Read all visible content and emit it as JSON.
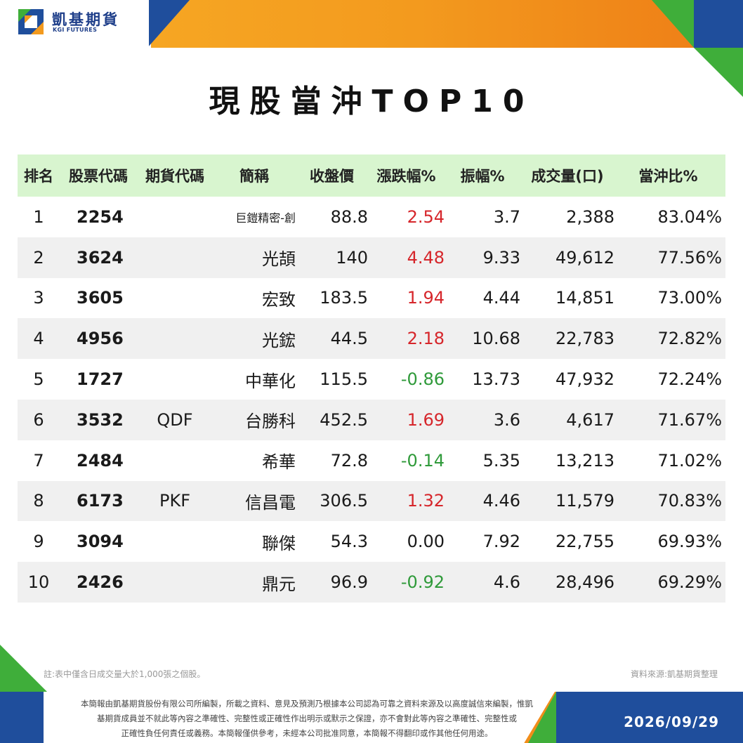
{
  "brand": {
    "name_zh": "凱基期貨",
    "name_en": "KGI FUTURES"
  },
  "title": "現股當沖TOP10",
  "table": {
    "headers": [
      "排名",
      "股票代碼",
      "期貨代碼",
      "簡稱",
      "收盤價",
      "漲跌幅%",
      "振幅%",
      "成交量(口)",
      "當沖比%"
    ],
    "rows": [
      {
        "rank": "1",
        "code": "2254",
        "futures": "",
        "name": "巨鎧精密-創",
        "close": "88.8",
        "change": "2.54",
        "amplitude": "3.7",
        "volume": "2,388",
        "ratio": "83.04%"
      },
      {
        "rank": "2",
        "code": "3624",
        "futures": "",
        "name": "光頡",
        "close": "140",
        "change": "4.48",
        "amplitude": "9.33",
        "volume": "49,612",
        "ratio": "77.56%"
      },
      {
        "rank": "3",
        "code": "3605",
        "futures": "",
        "name": "宏致",
        "close": "183.5",
        "change": "1.94",
        "amplitude": "4.44",
        "volume": "14,851",
        "ratio": "73.00%"
      },
      {
        "rank": "4",
        "code": "4956",
        "futures": "",
        "name": "光鋐",
        "close": "44.5",
        "change": "2.18",
        "amplitude": "10.68",
        "volume": "22,783",
        "ratio": "72.82%"
      },
      {
        "rank": "5",
        "code": "1727",
        "futures": "",
        "name": "中華化",
        "close": "115.5",
        "change": "-0.86",
        "amplitude": "13.73",
        "volume": "47,932",
        "ratio": "72.24%"
      },
      {
        "rank": "6",
        "code": "3532",
        "futures": "QDF",
        "name": "台勝科",
        "close": "452.5",
        "change": "1.69",
        "amplitude": "3.6",
        "volume": "4,617",
        "ratio": "71.67%"
      },
      {
        "rank": "7",
        "code": "2484",
        "futures": "",
        "name": "希華",
        "close": "72.8",
        "change": "-0.14",
        "amplitude": "5.35",
        "volume": "13,213",
        "ratio": "71.02%"
      },
      {
        "rank": "8",
        "code": "6173",
        "futures": "PKF",
        "name": "信昌電",
        "close": "306.5",
        "change": "1.32",
        "amplitude": "4.46",
        "volume": "11,579",
        "ratio": "70.83%"
      },
      {
        "rank": "9",
        "code": "3094",
        "futures": "",
        "name": "聯傑",
        "close": "54.3",
        "change": "0.00",
        "amplitude": "7.92",
        "volume": "22,755",
        "ratio": "69.93%"
      },
      {
        "rank": "10",
        "code": "2426",
        "futures": "",
        "name": "鼎元",
        "close": "96.9",
        "change": "-0.92",
        "amplitude": "4.6",
        "volume": "28,496",
        "ratio": "69.29%"
      }
    ]
  },
  "colors": {
    "up": "#d6262b",
    "down": "#2f9a3a",
    "flat": "#1a1a1a",
    "header_bg": "#d8f5cf",
    "row_shade": "#f0f0f0",
    "brand_blue": "#1f4e9c",
    "brand_orange": "#f39a1e",
    "brand_green": "#3fae3a"
  },
  "notes": {
    "left": "註:表中僅含日成交量大於1,000張之個股。",
    "right": "資料來源:凱基期貨整理"
  },
  "disclaimer": [
    "本簡報由凱基期貨股份有限公司所編製，所載之資料、意見及預測乃根據本公司認為可靠之資料來源及以高度誠信來編製，惟凱",
    "基期貨成員並不就此等內容之準確性、完整性或正確性作出明示或默示之保證，亦不會對此等內容之準確性、完整性或",
    "正確性負任何責任或義務。本簡報僅供參考，未經本公司批准同意，本簡報不得翻印或作其他任何用途。"
  ],
  "date": "2026/09/29"
}
